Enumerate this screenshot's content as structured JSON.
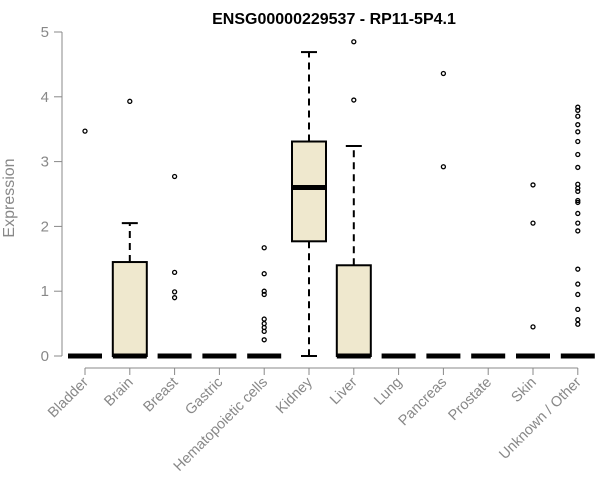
{
  "chart_data": {
    "type": "box",
    "title": "ENSG00000229537 - RP11-5P4.1",
    "xlabel": "",
    "ylabel": "Expression",
    "ylim": [
      0,
      5
    ],
    "yticks": [
      0,
      1,
      2,
      3,
      4,
      5
    ],
    "box_fill": "#efe8ce",
    "grid": false,
    "legend": "none",
    "categories": [
      "Bladder",
      "Brain",
      "Breast",
      "Gastric",
      "Hematopoietic cells",
      "Kidney",
      "Liver",
      "Lung",
      "Pancreas",
      "Prostate",
      "Skin",
      "Unknown / Other"
    ],
    "boxes": [
      {
        "q1": 0,
        "median": 0,
        "q3": 0,
        "whisker_low": 0,
        "whisker_high": 0,
        "outliers": [
          3.47
        ]
      },
      {
        "q1": 0,
        "median": 0,
        "q3": 1.45,
        "whisker_low": 0,
        "whisker_high": 2.05,
        "outliers": [
          3.93
        ]
      },
      {
        "q1": 0,
        "median": 0,
        "q3": 0,
        "whisker_low": 0,
        "whisker_high": 0,
        "outliers": [
          2.77,
          1.29,
          0.99,
          0.9
        ]
      },
      {
        "q1": 0,
        "median": 0,
        "q3": 0,
        "whisker_low": 0,
        "whisker_high": 0,
        "outliers": []
      },
      {
        "q1": 0,
        "median": 0,
        "q3": 0,
        "whisker_low": 0,
        "whisker_high": 0,
        "outliers": [
          1.67,
          1.27,
          1.0,
          0.95,
          0.57,
          0.5,
          0.44,
          0.38,
          0.25
        ]
      },
      {
        "q1": 1.77,
        "median": 2.6,
        "q3": 3.31,
        "whisker_low": 0,
        "whisker_high": 4.69,
        "outliers": []
      },
      {
        "q1": 0,
        "median": 0,
        "q3": 1.4,
        "whisker_low": 0,
        "whisker_high": 3.24,
        "outliers": [
          4.85,
          3.95
        ]
      },
      {
        "q1": 0,
        "median": 0,
        "q3": 0,
        "whisker_low": 0,
        "whisker_high": 0,
        "outliers": []
      },
      {
        "q1": 0,
        "median": 0,
        "q3": 0,
        "whisker_low": 0,
        "whisker_high": 0,
        "outliers": [
          4.36,
          2.92
        ]
      },
      {
        "q1": 0,
        "median": 0,
        "q3": 0,
        "whisker_low": 0,
        "whisker_high": 0,
        "outliers": []
      },
      {
        "q1": 0,
        "median": 0,
        "q3": 0,
        "whisker_low": 0,
        "whisker_high": 0,
        "outliers": [
          2.64,
          2.05,
          0.45
        ]
      },
      {
        "q1": 0,
        "median": 0,
        "q3": 0,
        "whisker_low": 0,
        "whisker_high": 0,
        "outliers": [
          3.84,
          3.79,
          3.7,
          3.57,
          3.46,
          3.31,
          3.11,
          2.91,
          2.65,
          2.59,
          2.54,
          2.4,
          2.37,
          2.2,
          2.05,
          1.93,
          1.34,
          1.11,
          0.95,
          0.72,
          0.56,
          0.49
        ]
      }
    ]
  }
}
